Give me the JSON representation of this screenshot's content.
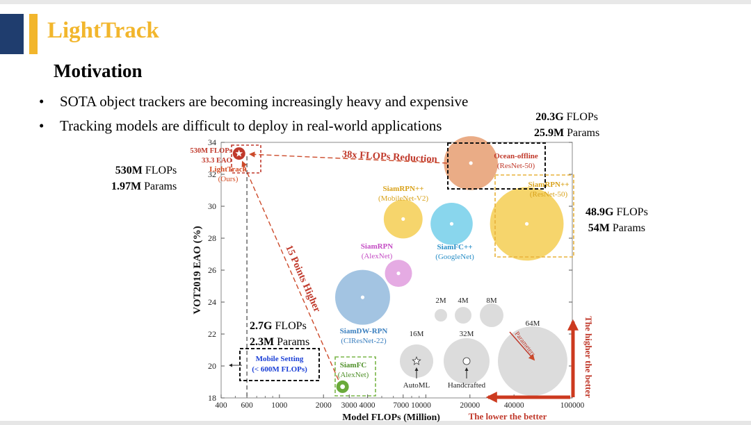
{
  "slide": {
    "title": "LightTrack",
    "subtitle": "Motivation",
    "bullets": [
      "SOTA object trackers are becoming increasingly heavy and expensive",
      "Tracking models are difficult to deploy in real-world applications"
    ],
    "bullet_symbol": "•",
    "callouts": {
      "lighttrack": {
        "flops_num": "530M",
        "flops_unit": " FLOPs",
        "params_num": "1.97M",
        "params_unit": " Params"
      },
      "ocean": {
        "flops_num": "20.3G",
        "flops_unit": " FLOPs",
        "params_num": "25.9M",
        "params_unit": " Params"
      },
      "siamrpnpp_resnet": {
        "flops_num": "48.9G",
        "flops_unit": " FLOPs",
        "params_num": "54M",
        "params_unit": " Params"
      },
      "siamfc": {
        "flops_num": "2.7G",
        "flops_unit": " FLOPs",
        "params_num": "2.3M",
        "params_unit": " Params"
      }
    },
    "colors": {
      "title": "#f2b62c",
      "navy": "#1f3d6e",
      "red": "#c0392b"
    }
  },
  "chart_data": {
    "type": "scatter",
    "subtype": "bubble",
    "xscale": "log",
    "xlim": [
      400,
      100000
    ],
    "ylim": [
      18,
      34
    ],
    "xlabel": "Model FLOPs (Million)",
    "ylabel": "VOT2019  EAO (%)",
    "xticks": [
      400,
      600,
      1000,
      2000,
      3000,
      4000,
      7000,
      10000,
      20000,
      40000,
      100000
    ],
    "xtick_labels": [
      "400",
      "600",
      "1000",
      "2000",
      "3000 4000",
      "",
      "7000 10000",
      "",
      "20000",
      "40000",
      "100000"
    ],
    "yticks": [
      18,
      20,
      22,
      24,
      26,
      28,
      30,
      32,
      34
    ],
    "points": [
      {
        "name": "LightTrack",
        "sub": "(Ours)",
        "flops": 530,
        "eao": 33.3,
        "params_m": 1.97,
        "color": "#c0392b",
        "marker": "star",
        "label_anchor": "left"
      },
      {
        "name": "Ocean-offline",
        "sub": "(ResNet-50)",
        "flops": 20300,
        "eao": 32.7,
        "params_m": 25.9,
        "color": "#e8a57c",
        "label_anchor": "right"
      },
      {
        "name": "SiamRPN++",
        "sub": "(ResNet-50)",
        "flops": 48900,
        "eao": 28.9,
        "params_m": 54,
        "color": "#f5d160",
        "label_anchor": "top-right"
      },
      {
        "name": "SiamRPN++",
        "sub": "(MobileNet-V2)",
        "flops": 7000,
        "eao": 29.2,
        "params_m": 11.2,
        "color": "#f5d160",
        "label_anchor": "top"
      },
      {
        "name": "SiamFC++",
        "sub": "(GoogleNet)",
        "flops": 15000,
        "eao": 28.9,
        "params_m": 13.9,
        "color": "#7fd3ec",
        "label_anchor": "bottom"
      },
      {
        "name": "SiamRPN",
        "sub": "(AlexNet)",
        "flops": 6500,
        "eao": 25.8,
        "params_m": 4.0,
        "color": "#e3a4e1",
        "label_anchor": "top"
      },
      {
        "name": "SiamDW-RPN",
        "sub": "(CIResNet-22)",
        "flops": 3700,
        "eao": 24.3,
        "params_m": 27,
        "color": "#9bbfe0",
        "label_anchor": "bottom"
      },
      {
        "name": "SiamFC",
        "sub": "(AlexNet)",
        "flops": 2700,
        "eao": 18.7,
        "params_m": 2.3,
        "color": "#6aaa3a",
        "label_anchor": "top-right"
      }
    ],
    "param_legend": {
      "sizes": [
        "2M",
        "4M",
        "8M",
        "16M",
        "32M",
        "64M"
      ],
      "automl_label": "AutoML",
      "handcrafted_label": "Handcrafted",
      "parameters_label": "Parameters"
    },
    "annotations": {
      "flops_reduction": "38x FLOPs Reduction",
      "points_higher": "15 Points Higher",
      "mobile_setting": "Mobile Setting",
      "mobile_limit": "(< 600M FLOPs)",
      "lighttrack_flops": "530M FLOPs",
      "lighttrack_eao": "33.3 EAO",
      "lower_better": "The lower the better",
      "higher_better": "The higher the better"
    }
  }
}
